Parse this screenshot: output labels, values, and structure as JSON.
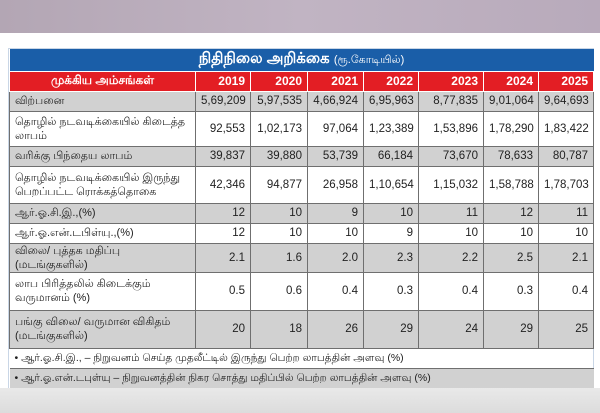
{
  "title": "நிதிநிலை அறிக்கை",
  "unit": "(ரூ.கோடியில்)",
  "header": {
    "label": "முக்கிய அம்சங்கள்",
    "years": [
      "2019",
      "2020",
      "2021",
      "2022",
      "2023",
      "2024",
      "2025"
    ]
  },
  "rows": [
    {
      "label": "விற்பனை",
      "values": [
        "5,69,209",
        "5,97,535",
        "4,66,924",
        "6,95,963",
        "8,77,835",
        "9,01,064",
        "9,64,693"
      ]
    },
    {
      "label": "தொழில் நடவடிக்கையில் கிடைத்த லாபம்",
      "values": [
        "92,553",
        "1,02,173",
        "97,064",
        "1,23,389",
        "1,53,896",
        "1,78,290",
        "1,83,422"
      ]
    },
    {
      "label": "வரிக்கு பிந்தைய லாபம்",
      "values": [
        "39,837",
        "39,880",
        "53,739",
        "66,184",
        "73,670",
        "78,633",
        "80,787"
      ]
    },
    {
      "label": "தொழில் நடவடிக்கையில் இருந்து பெறப்பட்ட ரொக்கத்தொகை",
      "values": [
        "42,346",
        "94,877",
        "26,958",
        "1,10,654",
        "1,15,032",
        "1,58,788",
        "1,78,703"
      ]
    },
    {
      "label": "ஆர்.ஓ.சி.இ.,(%)",
      "values": [
        "12",
        "10",
        "9",
        "10",
        "11",
        "12",
        "11"
      ]
    },
    {
      "label": "ஆர்.ஓ.என்.டபிள்யு.,(%)",
      "values": [
        "12",
        "10",
        "10",
        "9",
        "10",
        "10",
        "10"
      ]
    },
    {
      "label": "விலை/ புத்தக மதிப்பு (மடங்குகளில்)",
      "values": [
        "2.1",
        "1.6",
        "2.0",
        "2.3",
        "2.2",
        "2.5",
        "2.1"
      ]
    },
    {
      "label": "லாப பிரித்தலில் கிடைக்கும் வருமானம் (%)",
      "values": [
        "0.5",
        "0.6",
        "0.4",
        "0.3",
        "0.4",
        "0.3",
        "0.4"
      ]
    },
    {
      "label": "பங்கு விலை/ வருமான விகிதம் (மடங்குகளில்)",
      "values": [
        "20",
        "18",
        "26",
        "29",
        "24",
        "29",
        "25"
      ]
    }
  ],
  "footnotes": [
    "•  ஆர்.ஓ.சி.இ., – நிறுவனம் செய்த முதலீட்டில் இருந்து பெற்ற லாபத்தின் அளவு (%)",
    "•  ஆர்.ஓ.என்.டபுள்யு – நிறுவனத்தின் நிகர சொத்து மதிப்பில் பெற்ற லாபத்தின் அளவு (%)"
  ]
}
